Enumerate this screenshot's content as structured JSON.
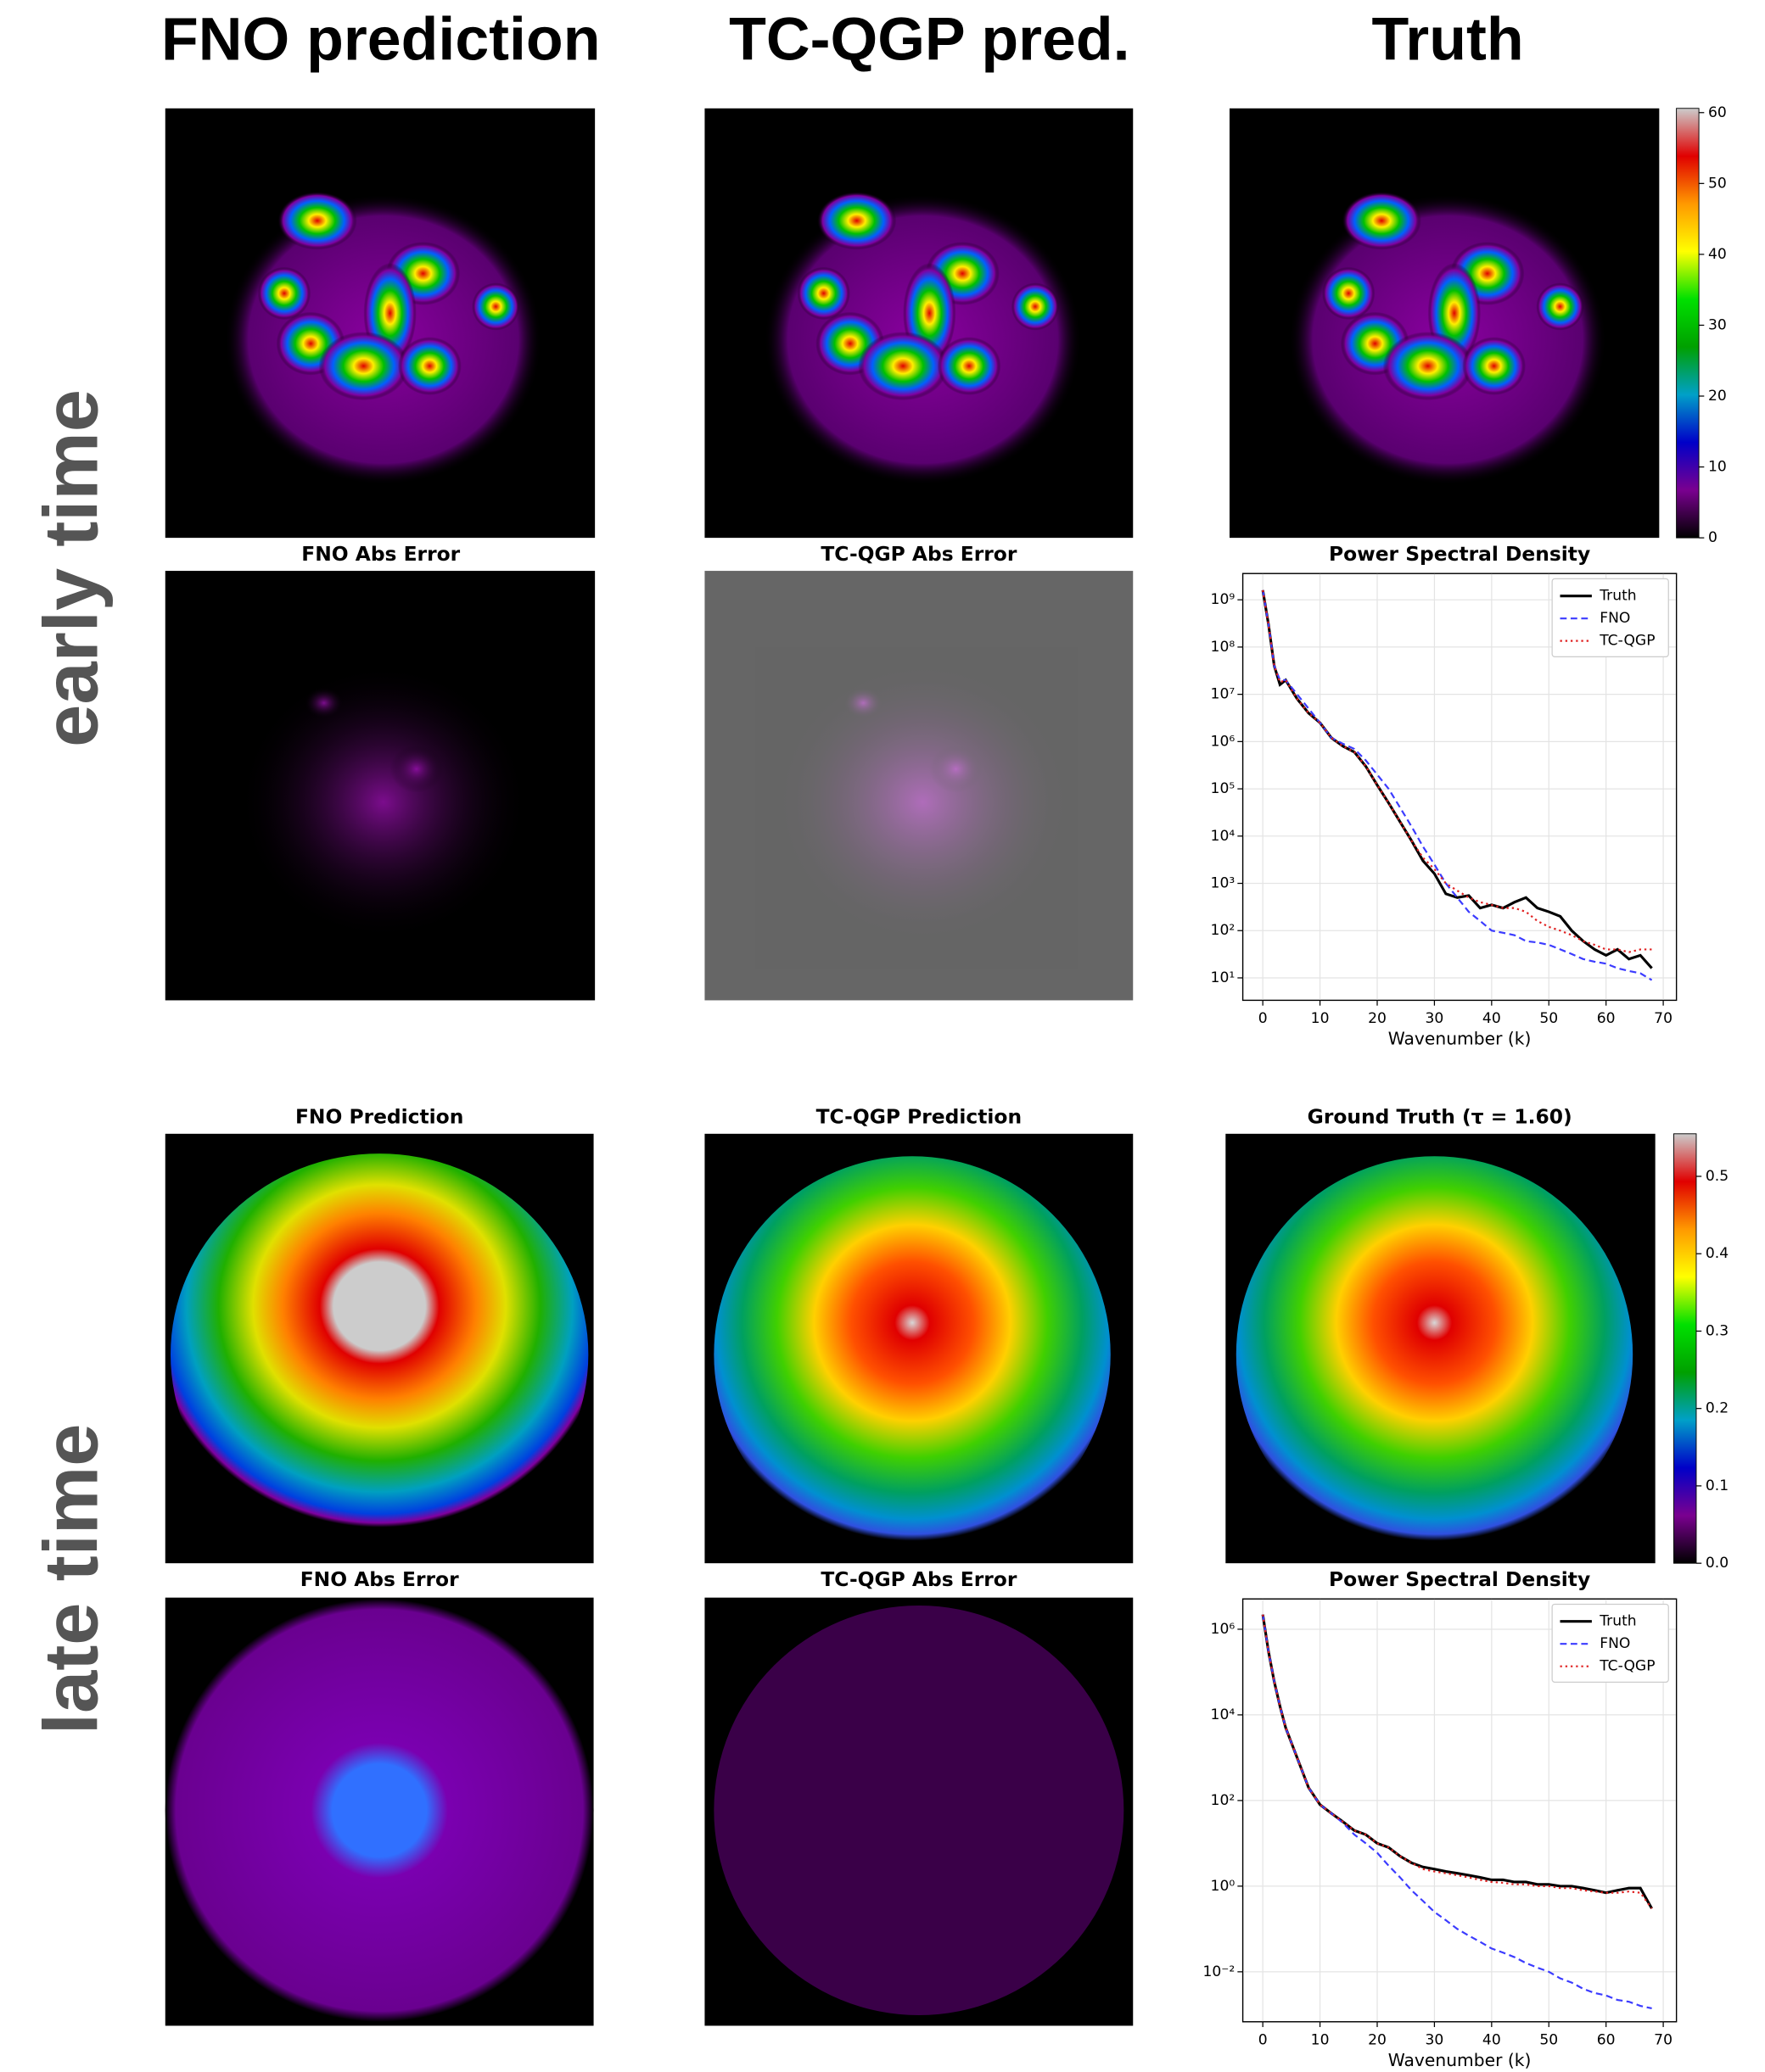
{
  "header": {
    "columns": [
      "FNO prediction",
      "TC-QGP pred.",
      "Truth"
    ],
    "rows": [
      "early time",
      "late time"
    ]
  },
  "panels": {
    "early_time": {
      "titles": [
        "FNO Abs Error",
        "TC-QGP Abs Error"
      ]
    },
    "late_time": {
      "titles": [
        "FNO Prediction",
        "TC-QGP Prediction",
        "Ground Truth (τ = 1.60)",
        "FNO Abs Error",
        "TC-QGP Abs Error"
      ]
    }
  },
  "chart_data": [
    {
      "type": "colorbar",
      "ylim": [
        0,
        60.6
      ],
      "yticks": [
        0,
        10,
        20,
        30,
        40,
        50,
        60
      ],
      "colormap": [
        "#000000",
        "#7a0090",
        "#0000c8",
        "#00a0c8",
        "#00a000",
        "#00e000",
        "#ffff00",
        "#ff9900",
        "#e00000",
        "#cccccc"
      ]
    },
    {
      "type": "line",
      "title": "Power Spectral Density",
      "xlabel": "Wavenumber (k)",
      "yscale": "log",
      "grid": true,
      "legend": "upper right",
      "x": [
        0,
        1,
        2,
        3,
        4,
        6,
        8,
        10,
        12,
        14,
        16,
        18,
        20,
        22,
        24,
        26,
        28,
        30,
        32,
        34,
        36,
        38,
        40,
        42,
        44,
        46,
        48,
        50,
        52,
        54,
        56,
        58,
        60,
        62,
        64,
        66,
        68
      ],
      "xlim": [
        -3.5,
        72.3
      ],
      "xticks": [
        0,
        10,
        20,
        30,
        40,
        50,
        60,
        70
      ],
      "ylim": [
        3.35,
        3600000000.0
      ],
      "yticks": [
        {
          "value": 10,
          "label": "10¹"
        },
        {
          "value": 100,
          "label": "10²"
        },
        {
          "value": 1000,
          "label": "10³"
        },
        {
          "value": 10000,
          "label": "10⁴"
        },
        {
          "value": 100000,
          "label": "10⁵"
        },
        {
          "value": 1000000,
          "label": "10⁶"
        },
        {
          "value": 10000000,
          "label": "10⁷"
        },
        {
          "value": 100000000,
          "label": "10⁸"
        },
        {
          "value": 1000000000,
          "label": "10⁹"
        }
      ],
      "series": [
        {
          "name": "Truth",
          "color": "#000000",
          "linestyle": "solid",
          "values": [
            1600000000.0,
            300000000.0,
            40000000.0,
            16000000.0,
            20000000.0,
            8000000.0,
            4000000.0,
            2500000.0,
            1200000.0,
            800000.0,
            600000.0,
            300000.0,
            120000.0,
            50000.0,
            20000.0,
            8000.0,
            3000.0,
            1600.0,
            600,
            500,
            550,
            300,
            350,
            300,
            400,
            500,
            300,
            250,
            200,
            100,
            60,
            40,
            30,
            40,
            25,
            30,
            16
          ]
        },
        {
          "name": "FNO",
          "color": "#3b3bff",
          "linestyle": "dashed",
          "values": [
            1600000000.0,
            300000000.0,
            40000000.0,
            20000000.0,
            20000000.0,
            10000000.0,
            5000000.0,
            2500000.0,
            1200000.0,
            900000.0,
            700000.0,
            400000.0,
            200000.0,
            100000.0,
            40000.0,
            16000.0,
            6000.0,
            2500.0,
            1000.0,
            500,
            250,
            160,
            100,
            90,
            80,
            60,
            56,
            50,
            40,
            32,
            25,
            22,
            20,
            16,
            14,
            12.5,
            9
          ]
        },
        {
          "name": "TC-QGP",
          "color": "#e02020",
          "linestyle": "dotted",
          "values": [
            1600000000.0,
            300000000.0,
            40000000.0,
            18000000.0,
            20000000.0,
            8000000.0,
            4000000.0,
            2500000.0,
            1200000.0,
            800000.0,
            600000.0,
            300000.0,
            120000.0,
            50000.0,
            20000.0,
            8000.0,
            3500.0,
            2000.0,
            1000.0,
            700,
            500,
            400,
            350,
            300,
            300,
            250,
            160,
            120,
            100,
            80,
            60,
            50,
            40,
            40,
            35,
            40,
            40
          ]
        }
      ]
    },
    {
      "type": "colorbar",
      "ylim": [
        0,
        0.555
      ],
      "yticks": [
        {
          "value": 0,
          "label": "0.0"
        },
        0.1,
        0.2,
        0.3,
        0.4,
        0.5
      ],
      "colormap": [
        "#000000",
        "#7a0090",
        "#0000c8",
        "#00a0c8",
        "#00a000",
        "#00e000",
        "#ffff00",
        "#ff9900",
        "#e00000",
        "#cccccc"
      ]
    },
    {
      "type": "line",
      "title": "Power Spectral Density",
      "xlabel": "Wavenumber (k)",
      "yscale": "log",
      "grid": true,
      "legend": "upper right",
      "x": [
        0,
        1,
        2,
        3,
        4,
        6,
        8,
        10,
        12,
        14,
        16,
        18,
        20,
        22,
        24,
        26,
        28,
        30,
        32,
        34,
        36,
        38,
        40,
        42,
        44,
        46,
        48,
        50,
        52,
        54,
        56,
        58,
        60,
        62,
        64,
        66,
        68
      ],
      "xlim": [
        -3.5,
        72.3
      ],
      "xticks": [
        0,
        10,
        20,
        30,
        40,
        50,
        60,
        70
      ],
      "ylim": [
        0.00068,
        5100000.0
      ],
      "yticks": [
        {
          "value": 0.01,
          "label": "10⁻²"
        },
        {
          "value": 1,
          "label": "10⁰"
        },
        {
          "value": 100,
          "label": "10²"
        },
        {
          "value": 10000,
          "label": "10⁴"
        },
        {
          "value": 1000000,
          "label": "10⁶"
        }
      ],
      "series": [
        {
          "name": "Truth",
          "color": "#000000",
          "linestyle": "solid",
          "values": [
            2200000.0,
            300000.0,
            60000.0,
            16000.0,
            5000.0,
            1000.0,
            200,
            80,
            50,
            32,
            20,
            16,
            10,
            8,
            5,
            3.5,
            2.8,
            2.5,
            2.2,
            2,
            1.8,
            1.6,
            1.4,
            1.4,
            1.25,
            1.25,
            1.1,
            1.1,
            1,
            1,
            0.9,
            0.8,
            0.7,
            0.8,
            0.9,
            0.9,
            0.3
          ]
        },
        {
          "name": "FNO",
          "color": "#3b3bff",
          "linestyle": "dashed",
          "values": [
            2200000.0,
            300000.0,
            60000.0,
            16000.0,
            5000.0,
            1000.0,
            200,
            80,
            50,
            30,
            16,
            10,
            6,
            3,
            1.6,
            0.8,
            0.45,
            0.25,
            0.16,
            0.1,
            0.07,
            0.05,
            0.035,
            0.028,
            0.022,
            0.016,
            0.0125,
            0.01,
            0.007,
            0.0056,
            0.004,
            0.0032,
            0.0028,
            0.0022,
            0.002,
            0.0016,
            0.0014
          ]
        },
        {
          "name": "TC-QGP",
          "color": "#e02020",
          "linestyle": "dotted",
          "values": [
            2200000.0,
            300000.0,
            60000.0,
            16000.0,
            5000.0,
            1000.0,
            200,
            80,
            50,
            32,
            20,
            16,
            10,
            8,
            5,
            3.5,
            2.5,
            2.2,
            2,
            1.8,
            1.6,
            1.4,
            1.25,
            1.2,
            1.1,
            1.1,
            1,
            1,
            0.9,
            0.9,
            0.8,
            0.75,
            0.7,
            0.7,
            0.75,
            0.7,
            0.3
          ]
        }
      ]
    }
  ]
}
